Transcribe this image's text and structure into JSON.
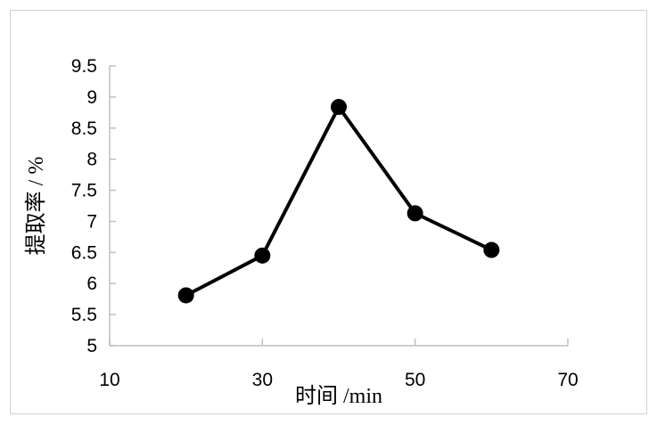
{
  "chart_data": {
    "type": "line",
    "title": "",
    "xlabel": "时间 /min",
    "ylabel": "提取率 / %",
    "xlim": [
      10,
      70
    ],
    "ylim": [
      5,
      9.5
    ],
    "x_tick_labels": [
      "10",
      "30",
      "50",
      "70"
    ],
    "x_ticks": [
      10,
      30,
      50,
      70
    ],
    "y_tick_labels": [
      "5",
      "5.5",
      "6",
      "6.5",
      "7",
      "7.5",
      "8",
      "8.5",
      "9",
      "9.5"
    ],
    "y_ticks": [
      5,
      5.5,
      6,
      6.5,
      7,
      7.5,
      8,
      8.5,
      9,
      9.5
    ],
    "grid": false,
    "legend": "none",
    "series": [
      {
        "x": [
          20,
          30,
          40,
          50,
          60
        ],
        "values": [
          5.81,
          6.45,
          8.84,
          7.13,
          6.54
        ],
        "color": "#000000",
        "marker": "circle"
      }
    ],
    "axis_color": "#bfbfbf"
  }
}
